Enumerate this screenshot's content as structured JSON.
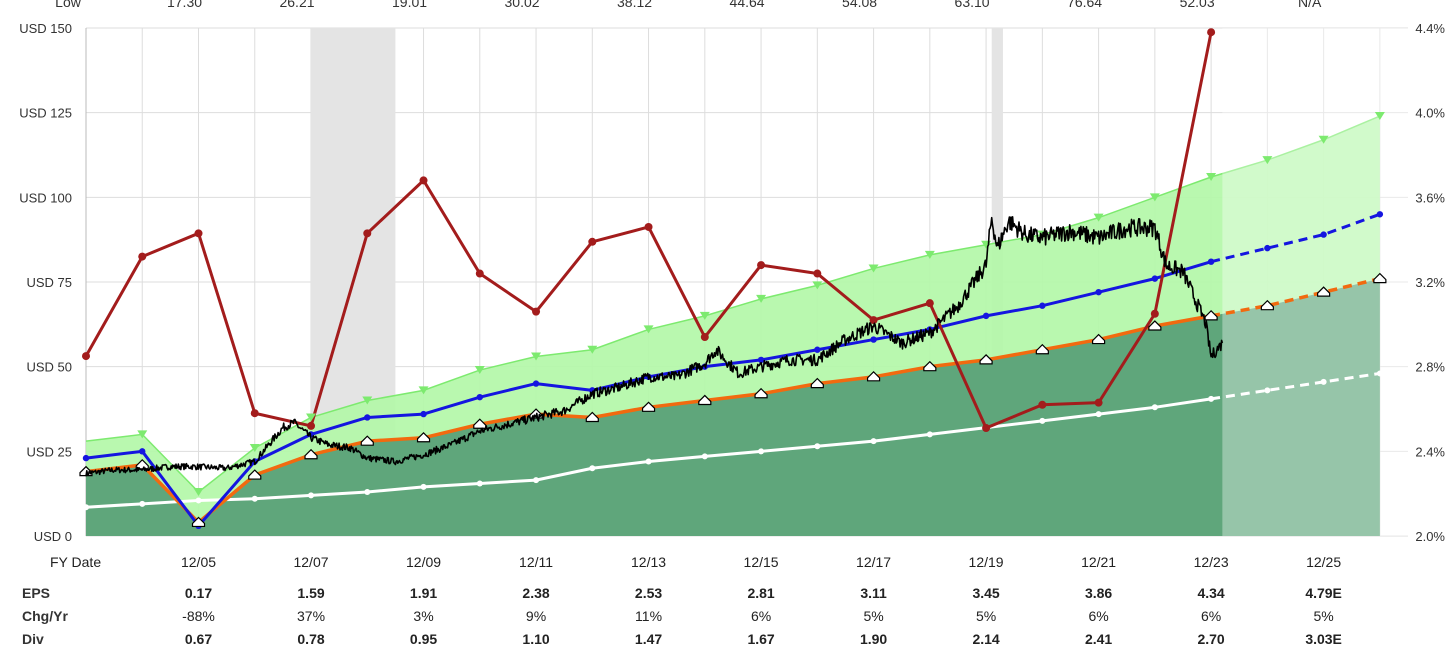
{
  "colors": {
    "price": "#000000",
    "green_band": "#b3f7a8",
    "green_band_edge": "#7dea6f",
    "dark_fill": "#5fa67b",
    "forecast_fill": "#9ac5a8",
    "orange": "#f26a0f",
    "blue": "#1515e0",
    "white_line": "#ffffff",
    "red": "#a31c1c",
    "recession": "#e4e4e4",
    "grid": "#dddddd",
    "negative": "#c0171b"
  },
  "top_row": {
    "label": "Low",
    "values": [
      "17.30",
      "26.21",
      "19.01",
      "30.02",
      "38.12",
      "44.64",
      "54.08",
      "63.10",
      "76.64",
      "52.03",
      "N/A"
    ]
  },
  "chart_data": {
    "type": "line",
    "x_domain": [
      2003.0,
      2026.5
    ],
    "left_axis": {
      "range": [
        0,
        150
      ],
      "ticks": [
        0,
        25,
        50,
        75,
        100,
        125,
        150
      ],
      "tick_labels": [
        "USD 0",
        "USD 25",
        "USD 50",
        "USD 75",
        "USD 100",
        "USD 125",
        "USD 150"
      ]
    },
    "right_axis": {
      "range": [
        2.0,
        4.4
      ],
      "ticks": [
        2.0,
        2.4,
        2.8,
        3.2,
        3.6,
        4.0,
        4.4
      ],
      "tick_labels": [
        "2.0%",
        "2.4%",
        "2.8%",
        "3.2%",
        "3.6%",
        "4.0%",
        "4.4%"
      ]
    },
    "x_axis": {
      "label": "FY Date",
      "tick_labels": [
        "12/05",
        "12/07",
        "12/09",
        "12/11",
        "12/13",
        "12/15",
        "12/17",
        "12/19",
        "12/21",
        "12/23",
        "12/25"
      ],
      "tick_positions": [
        2005,
        2007,
        2009,
        2011,
        2013,
        2015,
        2017,
        2019,
        2021,
        2023,
        2025
      ]
    },
    "recessions": [
      [
        2007.0,
        2008.5
      ],
      [
        2019.1,
        2019.3
      ]
    ],
    "forecast_start": 2023.2,
    "series": [
      {
        "key": "green_band",
        "x": [
          2003,
          2004,
          2005,
          2006,
          2007,
          2008,
          2009,
          2010,
          2011,
          2012,
          2013,
          2014,
          2015,
          2016,
          2017,
          2018,
          2019,
          2020,
          2021,
          2022,
          2023,
          2024,
          2025,
          2026
        ],
        "values": [
          28,
          30,
          13,
          26,
          35,
          40,
          43,
          49,
          53,
          55,
          61,
          65,
          70,
          74,
          79,
          83,
          86,
          89,
          94,
          100,
          106,
          111,
          117,
          124
        ]
      },
      {
        "key": "orange",
        "x": [
          2003,
          2004,
          2005,
          2006,
          2007,
          2008,
          2009,
          2010,
          2011,
          2012,
          2013,
          2014,
          2015,
          2016,
          2017,
          2018,
          2019,
          2020,
          2021,
          2022,
          2023,
          2024,
          2025,
          2026
        ],
        "values": [
          19,
          21,
          4,
          18,
          24,
          28,
          29,
          33,
          36,
          35,
          38,
          40,
          42,
          45,
          47,
          50,
          52,
          55,
          58,
          62,
          65,
          68,
          72,
          76
        ]
      },
      {
        "key": "blue",
        "x": [
          2003,
          2004,
          2005,
          2006,
          2007,
          2008,
          2009,
          2010,
          2011,
          2012,
          2013,
          2014,
          2015,
          2016,
          2017,
          2018,
          2019,
          2020,
          2021,
          2022,
          2023,
          2024,
          2025,
          2026
        ],
        "values": [
          23,
          25,
          3,
          22,
          30,
          35,
          36,
          41,
          45,
          43,
          47,
          50,
          52,
          55,
          58,
          61,
          65,
          68,
          72,
          76,
          81,
          85,
          89,
          95
        ]
      },
      {
        "key": "white_line",
        "x": [
          2003,
          2004,
          2005,
          2006,
          2007,
          2008,
          2009,
          2010,
          2011,
          2012,
          2013,
          2014,
          2015,
          2016,
          2017,
          2018,
          2019,
          2020,
          2021,
          2022,
          2023,
          2024,
          2025,
          2026
        ],
        "values": [
          8.5,
          9.5,
          10.5,
          11,
          12,
          13,
          14.5,
          15.5,
          16.5,
          20,
          22,
          23.5,
          25,
          26.5,
          28,
          30,
          32,
          34,
          36,
          38,
          40.5,
          43,
          45.5,
          48
        ]
      },
      {
        "key": "yield",
        "axis": "right",
        "x": [
          2003,
          2004,
          2005,
          2006,
          2007,
          2008,
          2009,
          2010,
          2011,
          2012,
          2013,
          2014,
          2015,
          2016,
          2017,
          2018,
          2019,
          2020,
          2021,
          2022,
          2023
        ],
        "values": [
          2.85,
          3.32,
          3.43,
          2.58,
          2.52,
          3.43,
          3.68,
          3.24,
          3.06,
          3.39,
          3.46,
          2.94,
          3.28,
          3.24,
          3.02,
          3.1,
          2.51,
          2.62,
          2.63,
          3.05,
          4.38
        ]
      }
    ],
    "price_anchors": [
      [
        2003.0,
        18.5
      ],
      [
        2003.5,
        19.5
      ],
      [
        2004.0,
        19.5
      ],
      [
        2004.5,
        20.5
      ],
      [
        2004.9,
        20.5
      ],
      [
        2005.5,
        20.0
      ],
      [
        2006.0,
        22.0
      ],
      [
        2006.5,
        32.0
      ],
      [
        2006.7,
        33.5
      ],
      [
        2007.0,
        29.0
      ],
      [
        2007.3,
        27.0
      ],
      [
        2007.7,
        26.0
      ],
      [
        2008.0,
        23.0
      ],
      [
        2008.5,
        22.0
      ],
      [
        2009.0,
        24.0
      ],
      [
        2009.5,
        27.0
      ],
      [
        2010.0,
        31.0
      ],
      [
        2010.5,
        33.0
      ],
      [
        2011.0,
        35.0
      ],
      [
        2011.5,
        37.0
      ],
      [
        2012.0,
        42.0
      ],
      [
        2012.5,
        44.0
      ],
      [
        2013.0,
        47.0
      ],
      [
        2013.5,
        47.0
      ],
      [
        2014.0,
        51.0
      ],
      [
        2014.2,
        55.0
      ],
      [
        2014.6,
        48.0
      ],
      [
        2015.0,
        50.0
      ],
      [
        2015.5,
        52.0
      ],
      [
        2016.0,
        52.0
      ],
      [
        2016.5,
        58.0
      ],
      [
        2017.0,
        62.0
      ],
      [
        2017.5,
        57.0
      ],
      [
        2018.0,
        60.0
      ],
      [
        2018.5,
        68.0
      ],
      [
        2019.0,
        80.0
      ],
      [
        2019.1,
        94.0
      ],
      [
        2019.2,
        85.0
      ],
      [
        2019.4,
        93.0
      ],
      [
        2019.7,
        89.0
      ],
      [
        2020.0,
        88.0
      ],
      [
        2020.5,
        90.0
      ],
      [
        2021.0,
        88.0
      ],
      [
        2021.5,
        91.0
      ],
      [
        2022.0,
        91.0
      ],
      [
        2022.2,
        80.0
      ],
      [
        2022.5,
        78.0
      ],
      [
        2022.9,
        63.0
      ],
      [
        2023.0,
        53.0
      ],
      [
        2023.2,
        57.0
      ]
    ]
  },
  "data_rows": {
    "eps": {
      "label": "EPS",
      "values": [
        "0.17",
        "1.59",
        "1.91",
        "2.38",
        "2.53",
        "2.81",
        "3.11",
        "3.45",
        "3.86",
        "4.34",
        "4.79E"
      ]
    },
    "chg": {
      "label": "Chg/Yr",
      "values": [
        "-88%",
        "37%",
        "3%",
        "9%",
        "11%",
        "6%",
        "5%",
        "5%",
        "6%",
        "6%",
        "5%"
      ]
    },
    "div": {
      "label": "Div",
      "values": [
        "0.67",
        "0.78",
        "0.95",
        "1.10",
        "1.47",
        "1.67",
        "1.90",
        "2.14",
        "2.41",
        "2.70",
        "3.03E"
      ]
    }
  }
}
